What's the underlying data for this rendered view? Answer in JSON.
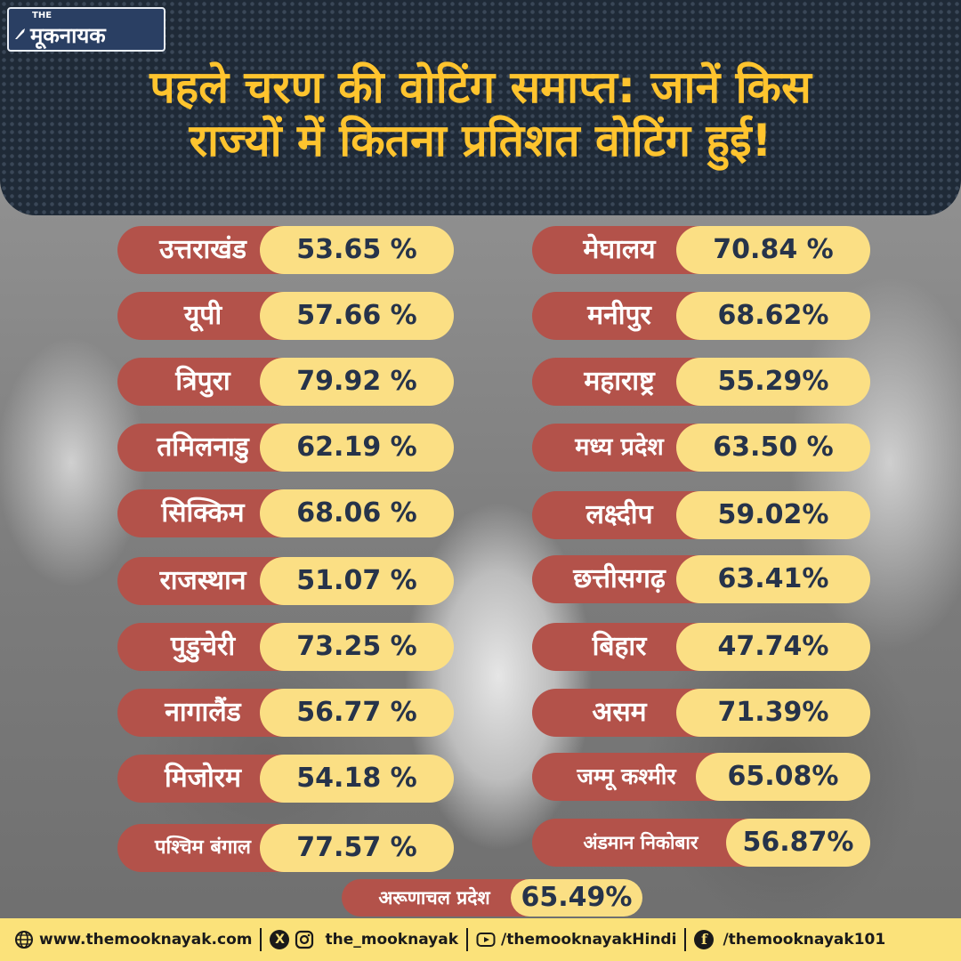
{
  "logo": {
    "prefix": "THE",
    "name": "मूकनायक"
  },
  "headline": {
    "line1": "पहले चरण की वोटिंग समाप्त: जानें किस",
    "line2": "राज्यों में कितना प्रतिशत वोटिंग हुई!"
  },
  "left_column": [
    {
      "state": "उत्तराखंड",
      "percent": "53.65 %"
    },
    {
      "state": "यूपी",
      "percent": "57.66 %"
    },
    {
      "state": "त्रिपुरा",
      "percent": "79.92 %"
    },
    {
      "state": "तमिलनाडु",
      "percent": "62.19 %"
    },
    {
      "state": "सिक्किम",
      "percent": "68.06 %"
    },
    {
      "state": "राजस्थान",
      "percent": "51.07 %"
    },
    {
      "state": "पुडुचेरी",
      "percent": "73.25 %"
    },
    {
      "state": "नागालैंड",
      "percent": "56.77 %"
    },
    {
      "state": "मिजोरम",
      "percent": "54.18 %"
    },
    {
      "state": "पश्चिम बंगाल",
      "percent": "77.57 %"
    }
  ],
  "right_column": [
    {
      "state": "मेघालय",
      "percent": "70.84 %"
    },
    {
      "state": "मनीपुर",
      "percent": "68.62%"
    },
    {
      "state": "महाराष्ट्र",
      "percent": "55.29%"
    },
    {
      "state": "मध्य प्रदेश",
      "percent": "63.50 %"
    },
    {
      "state": "लक्ष्दीप",
      "percent": "59.02%"
    },
    {
      "state": "छत्तीसगढ़",
      "percent": "63.41%"
    },
    {
      "state": "बिहार",
      "percent": "47.74%"
    },
    {
      "state": "असम",
      "percent": "71.39%"
    },
    {
      "state": "जम्मू कश्मीर",
      "percent": "65.08%"
    },
    {
      "state": "अंडमान निकोबार",
      "percent": "56.87%"
    }
  ],
  "bottom_row": {
    "state": "अरूणाचल प्रदेश",
    "percent": "65.49%"
  },
  "footer": {
    "website": "www.themooknayak.com",
    "social_handle": "the_mooknayak",
    "youtube": "/themooknayakHindi",
    "facebook": "/themooknayak101"
  },
  "colors": {
    "state_pill": "#b3524a",
    "value_pill": "#fbdf84",
    "headline": "#ffc42e",
    "header_bg": "#1f2a37",
    "footer_bg": "#fbe27a"
  },
  "icons": [
    "globe-icon",
    "x-icon",
    "instagram-icon",
    "youtube-icon",
    "facebook-icon"
  ]
}
